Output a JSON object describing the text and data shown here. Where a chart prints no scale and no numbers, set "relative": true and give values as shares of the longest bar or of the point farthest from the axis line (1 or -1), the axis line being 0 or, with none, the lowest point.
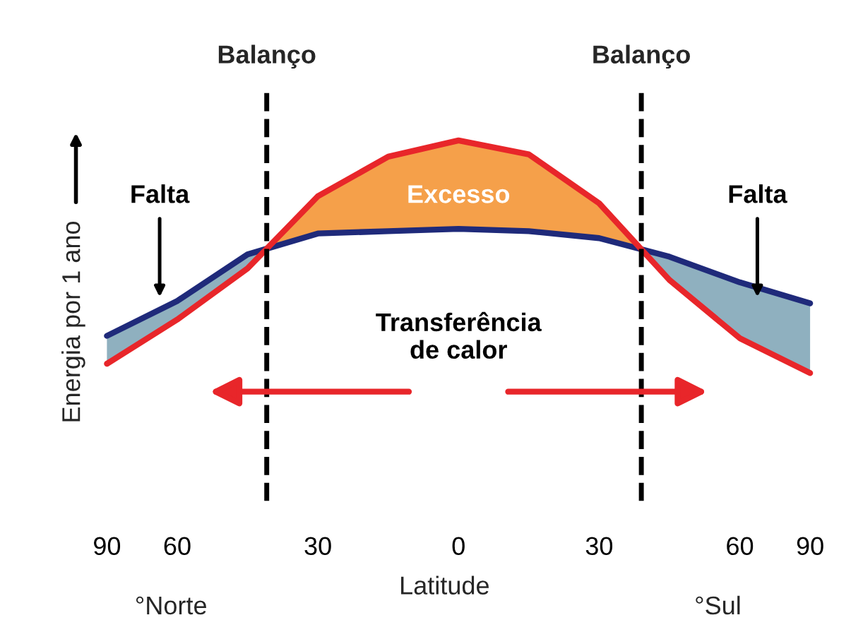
{
  "chart_data": {
    "type": "line",
    "relative": true,
    "xlabel": "Latitude",
    "ylabel": "Energia por 1 ano",
    "categories": [
      "90",
      "60",
      null,
      "30",
      null,
      "0",
      null,
      "30",
      null,
      "60",
      "90"
    ],
    "series": [
      {
        "color": "#1f2a7a",
        "values": [
          0.16,
          0.31,
          0.51,
          0.6,
          0.61,
          0.62,
          0.61,
          0.58,
          0.5,
          0.39,
          0.3
        ]
      },
      {
        "color": "#e8262a",
        "values": [
          0.04,
          0.23,
          0.45,
          0.76,
          0.93,
          1,
          0.94,
          0.73,
          0.4,
          0.15,
          0
        ]
      }
    ],
    "annotations": [
      "Falta",
      "Falta",
      "Excesso",
      "Transferência\nde calor",
      "°Norte",
      "°Sul",
      "Balanço",
      "Balanço"
    ],
    "grid": false,
    "marker": "none",
    "line_style": "solid"
  }
}
